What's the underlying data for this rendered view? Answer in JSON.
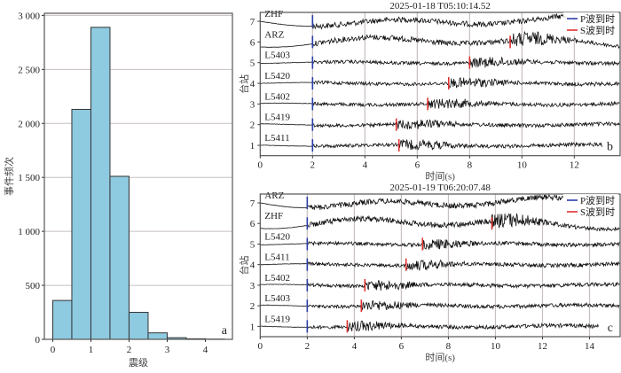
{
  "chart_data": [
    {
      "type": "bar",
      "panel_label": "a",
      "xlabel": "震级",
      "ylabel": "事件频次",
      "bin_edges": [
        0,
        0.5,
        1,
        1.5,
        2,
        2.5,
        3,
        3.5,
        4,
        4.5
      ],
      "values": [
        360,
        2130,
        2890,
        1510,
        250,
        60,
        15,
        5,
        2
      ],
      "xlim": [
        -0.22,
        4.71
      ],
      "ylim": [
        0,
        3020
      ],
      "xticks": [
        0,
        1,
        2,
        3,
        4
      ],
      "yticks": [
        0,
        500,
        1000,
        1500,
        2000,
        2500,
        3000
      ],
      "ytick_labels": [
        "0",
        "500",
        "1 000",
        "1 500",
        "2 000",
        "2 500",
        "3 000"
      ],
      "grid": "horizontal",
      "bar_color": "#8ecae0"
    },
    {
      "type": "line",
      "panel_label": "b",
      "title": "2025-01-18 T05:10:14.52",
      "xlabel": "时间(s)",
      "ylabel": "台站",
      "xlim": [
        0,
        13.75
      ],
      "ylim": [
        0.5,
        7.43
      ],
      "xticks": [
        0,
        2,
        4,
        6,
        8,
        10,
        12
      ],
      "yticks": [
        1,
        2,
        3,
        4,
        5,
        6,
        7
      ],
      "legend": {
        "position": "top-right",
        "entries": [
          {
            "label": "P波到时",
            "color": "#2b3fa8"
          },
          {
            "label": "S波到时",
            "color": "#e03030"
          }
        ]
      },
      "stations": [
        {
          "y": 7,
          "name": "ZHF",
          "p": 2.0,
          "s": null,
          "end": 11.7
        },
        {
          "y": 6,
          "name": "ARZ",
          "p": 2.0,
          "s": 9.55,
          "end": 13.75
        },
        {
          "y": 5,
          "name": "L5403",
          "p": 2.0,
          "s": 8.0,
          "end": 13.75
        },
        {
          "y": 4,
          "name": "L5420",
          "p": 2.0,
          "s": 7.2,
          "end": 13.75
        },
        {
          "y": 3,
          "name": "L5402",
          "p": 2.0,
          "s": 6.4,
          "end": 13.75
        },
        {
          "y": 2,
          "name": "L5419",
          "p": 2.0,
          "s": 5.2,
          "end": 13.75
        },
        {
          "y": 1,
          "name": "L5411",
          "p": 2.0,
          "s": 5.3,
          "end": 13.1
        }
      ]
    },
    {
      "type": "line",
      "panel_label": "c",
      "title": "2025-01-19 T06:20:07.48",
      "xlabel": "时间(s)",
      "ylabel": "台站",
      "xlim": [
        0,
        15.3
      ],
      "ylim": [
        0.5,
        7.43
      ],
      "xticks": [
        0,
        2,
        4,
        6,
        8,
        10,
        12,
        14
      ],
      "yticks": [
        1,
        2,
        3,
        4,
        5,
        6,
        7
      ],
      "legend": {
        "position": "top-right",
        "entries": [
          {
            "label": "P波到时",
            "color": "#2b3fa8"
          },
          {
            "label": "S波到时",
            "color": "#e03030"
          }
        ]
      },
      "stations": [
        {
          "y": 7,
          "name": "ARZ",
          "p": 2.0,
          "s": null,
          "end": 12.9
        },
        {
          "y": 6,
          "name": "ZHF",
          "p": 2.0,
          "s": 9.85,
          "end": 15.3
        },
        {
          "y": 5,
          "name": "L5420",
          "p": 2.0,
          "s": 6.9,
          "end": 15.3
        },
        {
          "y": 4,
          "name": "L5411",
          "p": 2.0,
          "s": 6.2,
          "end": 15.3
        },
        {
          "y": 3,
          "name": "L5402",
          "p": 2.0,
          "s": 4.45,
          "end": 15.3
        },
        {
          "y": 2,
          "name": "L5403",
          "p": 2.0,
          "s": 4.3,
          "end": 15.3
        },
        {
          "y": 1,
          "name": "L5419",
          "p": 2.0,
          "s": 3.7,
          "end": 14.4
        }
      ]
    }
  ]
}
